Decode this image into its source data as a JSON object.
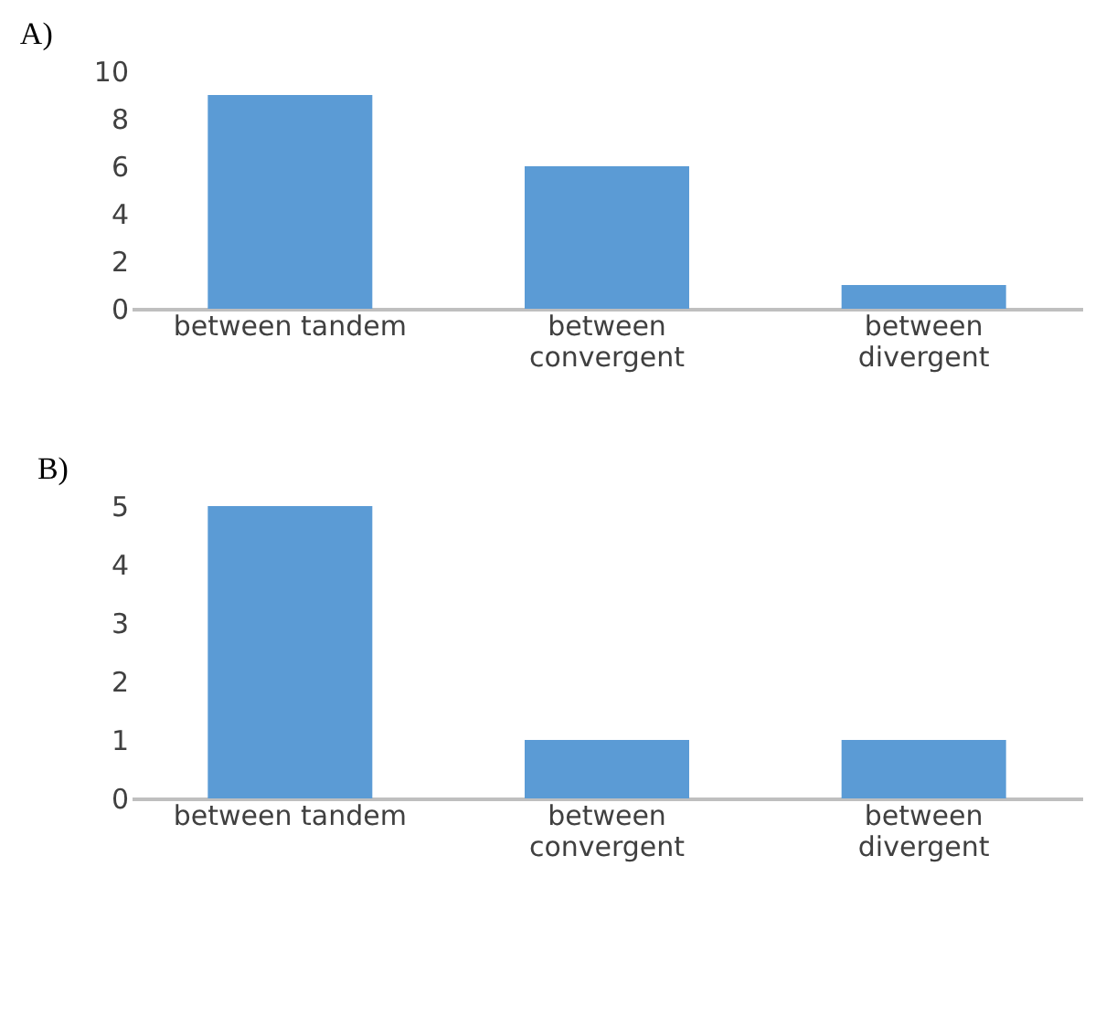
{
  "chart_data": [
    {
      "type": "bar",
      "title": "A)",
      "categories": [
        "between tandem",
        "between convergent",
        "between divergent"
      ],
      "values": [
        9,
        6,
        1
      ],
      "color": "#5b9bd5",
      "ylim": [
        0,
        10
      ],
      "yticks": [
        0,
        2,
        4,
        6,
        8,
        10
      ],
      "grid": false
    },
    {
      "type": "bar",
      "title": "B)",
      "categories": [
        "between tandem",
        "between convergent",
        "between divergent"
      ],
      "values": [
        5,
        1,
        1
      ],
      "color": "#5b9bd5",
      "ylim": [
        0,
        5
      ],
      "yticks": [
        0,
        1,
        2,
        3,
        4,
        5
      ],
      "grid": false
    }
  ]
}
